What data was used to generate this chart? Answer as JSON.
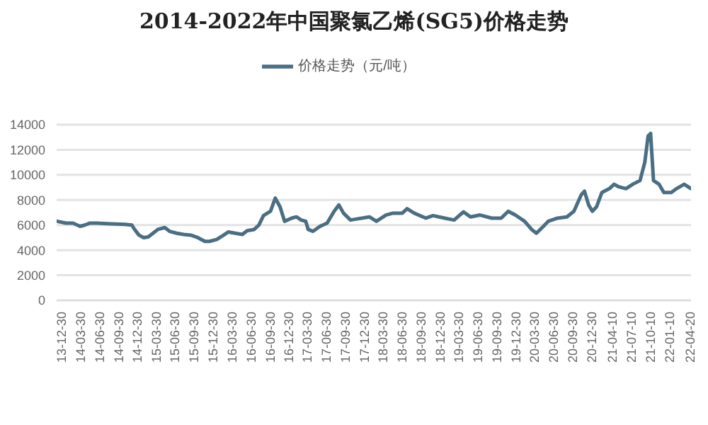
{
  "chart_data": {
    "type": "line",
    "title": "2014-2022年中国聚氯乙烯(SG5)价格走势",
    "legend": "top",
    "grid": "y",
    "marker": "none",
    "line_style": "solid",
    "xlim": [
      "2013-12-28",
      "2022-05-16"
    ],
    "xticks": [
      {
        "value": "2013-12-30",
        "label": "13-12-30"
      },
      {
        "value": "2014-03-30",
        "label": "14-03-30"
      },
      {
        "value": "2014-06-30",
        "label": "14-06-30"
      },
      {
        "value": "2014-09-30",
        "label": "14-09-30"
      },
      {
        "value": "2014-12-30",
        "label": "14-12-30"
      },
      {
        "value": "2015-03-30",
        "label": "15-03-30"
      },
      {
        "value": "2015-06-30",
        "label": "15-06-30"
      },
      {
        "value": "2015-09-30",
        "label": "15-09-30"
      },
      {
        "value": "2015-12-30",
        "label": "15-12-30"
      },
      {
        "value": "2016-03-30",
        "label": "16-03-30"
      },
      {
        "value": "2016-06-30",
        "label": "16-06-30"
      },
      {
        "value": "2016-09-30",
        "label": "16-09-30"
      },
      {
        "value": "2016-12-30",
        "label": "16-12-30"
      },
      {
        "value": "2017-03-30",
        "label": "17-03-30"
      },
      {
        "value": "2017-06-30",
        "label": "17-06-30"
      },
      {
        "value": "2017-09-30",
        "label": "17-09-30"
      },
      {
        "value": "2017-12-30",
        "label": "17-12-30"
      },
      {
        "value": "2018-03-30",
        "label": "18-03-30"
      },
      {
        "value": "2018-06-30",
        "label": "18-06-30"
      },
      {
        "value": "2018-09-30",
        "label": "18-09-30"
      },
      {
        "value": "2018-12-30",
        "label": "18-12-30"
      },
      {
        "value": "2019-03-30",
        "label": "19-03-30"
      },
      {
        "value": "2019-06-30",
        "label": "19-06-30"
      },
      {
        "value": "2019-09-30",
        "label": "19-09-30"
      },
      {
        "value": "2019-12-30",
        "label": "19-12-30"
      },
      {
        "value": "2020-03-30",
        "label": "20-03-30"
      },
      {
        "value": "2020-06-30",
        "label": "20-06-30"
      },
      {
        "value": "2020-09-30",
        "label": "20-09-30"
      },
      {
        "value": "2020-12-30",
        "label": "20-12-30"
      },
      {
        "value": "2021-04-10",
        "label": "21-04-10"
      },
      {
        "value": "2021-07-10",
        "label": "21-07-10"
      },
      {
        "value": "2021-10-10",
        "label": "21-10-10"
      },
      {
        "value": "2022-01-10",
        "label": "22-01-10"
      },
      {
        "value": "2022-04-20",
        "label": "22-04-20"
      }
    ],
    "ylim": [
      0,
      14000
    ],
    "yticks": [
      0,
      2000,
      4000,
      6000,
      8000,
      10000,
      12000,
      14000
    ],
    "x": [
      "2013-12-30",
      "2014-02-11",
      "2014-03-17",
      "2014-04-20",
      "2014-05-13",
      "2014-06-05",
      "2014-07-09",
      "2014-09-15",
      "2014-11-22",
      "2014-12-26",
      "2015-01-06",
      "2015-01-29",
      "2015-02-21",
      "2015-03-15",
      "2015-04-07",
      "2015-04-30",
      "2015-06-03",
      "2015-06-26",
      "2015-07-30",
      "2015-09-02",
      "2015-10-06",
      "2015-11-09",
      "2015-12-13",
      "2016-01-04",
      "2016-02-08",
      "2016-03-13",
      "2016-04-04",
      "2016-05-08",
      "2016-06-11",
      "2016-07-04",
      "2016-08-07",
      "2016-08-30",
      "2016-09-21",
      "2016-10-25",
      "2016-11-17",
      "2016-12-10",
      "2017-01-01",
      "2017-02-04",
      "2017-02-27",
      "2017-03-22",
      "2017-04-13",
      "2017-04-25",
      "2017-05-18",
      "2017-06-21",
      "2017-07-25",
      "2017-08-28",
      "2017-09-20",
      "2017-10-12",
      "2017-11-15",
      "2017-12-20",
      "2018-02-14",
      "2018-03-20",
      "2018-05-05",
      "2018-06-08",
      "2018-07-23",
      "2018-08-15",
      "2018-09-18",
      "2018-11-14",
      "2018-12-18",
      "2019-02-13",
      "2019-03-30",
      "2019-05-14",
      "2019-06-17",
      "2019-08-02",
      "2019-09-28",
      "2019-11-12",
      "2019-12-16",
      "2020-01-19",
      "2020-03-04",
      "2020-04-07",
      "2020-04-30",
      "2020-06-03",
      "2020-06-26",
      "2020-08-10",
      "2020-09-24",
      "2020-10-28",
      "2020-12-02",
      "2020-12-18",
      "2021-01-07",
      "2021-01-25",
      "2021-02-14",
      "2021-03-12",
      "2021-04-17",
      "2021-05-10",
      "2021-06-01",
      "2021-07-06",
      "2021-08-08",
      "2021-09-12",
      "2021-10-05",
      "2021-10-21",
      "2021-11-02",
      "2021-11-16",
      "2021-12-13",
      "2022-01-05",
      "2022-02-10",
      "2022-03-07",
      "2022-04-13",
      "2022-05-16"
    ],
    "series": [
      {
        "name": "价格走势（元/吨）",
        "color": "#4a6e84",
        "values": [
          6300,
          6150,
          6150,
          5900,
          6000,
          6150,
          6150,
          6100,
          6050,
          6000,
          5700,
          5200,
          5000,
          5050,
          5350,
          5650,
          5800,
          5500,
          5350,
          5250,
          5200,
          5000,
          4700,
          4700,
          4850,
          5200,
          5450,
          5350,
          5250,
          5550,
          5650,
          6000,
          6750,
          7100,
          8150,
          7450,
          6300,
          6550,
          6650,
          6400,
          6300,
          5650,
          5500,
          5900,
          6150,
          7100,
          7600,
          6950,
          6400,
          6500,
          6650,
          6300,
          6800,
          6950,
          6950,
          7300,
          6950,
          6550,
          6750,
          6550,
          6400,
          7050,
          6650,
          6800,
          6550,
          6550,
          7100,
          6800,
          6300,
          5650,
          5350,
          5900,
          6300,
          6550,
          6650,
          7100,
          8400,
          8700,
          7600,
          7100,
          7450,
          8600,
          8900,
          9250,
          9050,
          8900,
          9250,
          9550,
          11000,
          13100,
          13300,
          9550,
          9250,
          8600,
          8600,
          8900,
          9250,
          8900
        ]
      }
    ]
  }
}
